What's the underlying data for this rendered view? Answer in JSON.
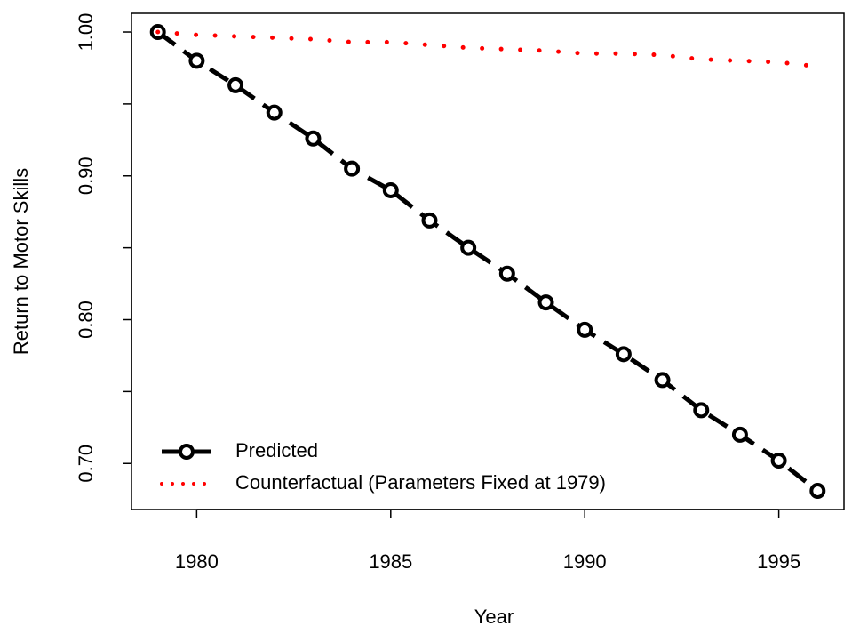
{
  "chart_data": {
    "type": "line",
    "x_label": "Year",
    "y_label": "Return to Motor Skills",
    "x": [
      1979,
      1980,
      1981,
      1982,
      1983,
      1984,
      1985,
      1986,
      1987,
      1988,
      1989,
      1990,
      1991,
      1992,
      1993,
      1994,
      1995,
      1996
    ],
    "series": [
      {
        "name": "Predicted",
        "color": "#000000",
        "style": "dashed-points",
        "values": [
          1.0,
          0.98,
          0.963,
          0.944,
          0.926,
          0.905,
          0.89,
          0.869,
          0.85,
          0.832,
          0.812,
          0.793,
          0.776,
          0.758,
          0.737,
          0.72,
          0.702,
          0.681
        ]
      },
      {
        "name": "Counterfactual (Parameters Fixed at 1979)",
        "color": "#ff0000",
        "style": "dotted",
        "values": [
          1.0,
          0.998,
          0.997,
          0.996,
          0.995,
          0.993,
          0.993,
          0.991,
          0.989,
          0.988,
          0.987,
          0.985,
          0.985,
          0.984,
          0.981,
          0.98,
          0.979,
          0.976
        ]
      }
    ],
    "xlim": [
      1978.32,
      1996.68
    ],
    "xticks": [
      1980,
      1985,
      1990,
      1995
    ],
    "ylim": [
      0.668,
      1.013
    ],
    "yticks": [
      {
        "value": 0.7,
        "label": "0.70"
      },
      {
        "value": 0.75,
        "label": null
      },
      {
        "value": 0.8,
        "label": "0.80"
      },
      {
        "value": 0.85,
        "label": null
      },
      {
        "value": 0.9,
        "label": "0.90"
      },
      {
        "value": 0.95,
        "label": null
      },
      {
        "value": 1.0,
        "label": "1.00"
      }
    ],
    "legend": "bottom-left"
  }
}
